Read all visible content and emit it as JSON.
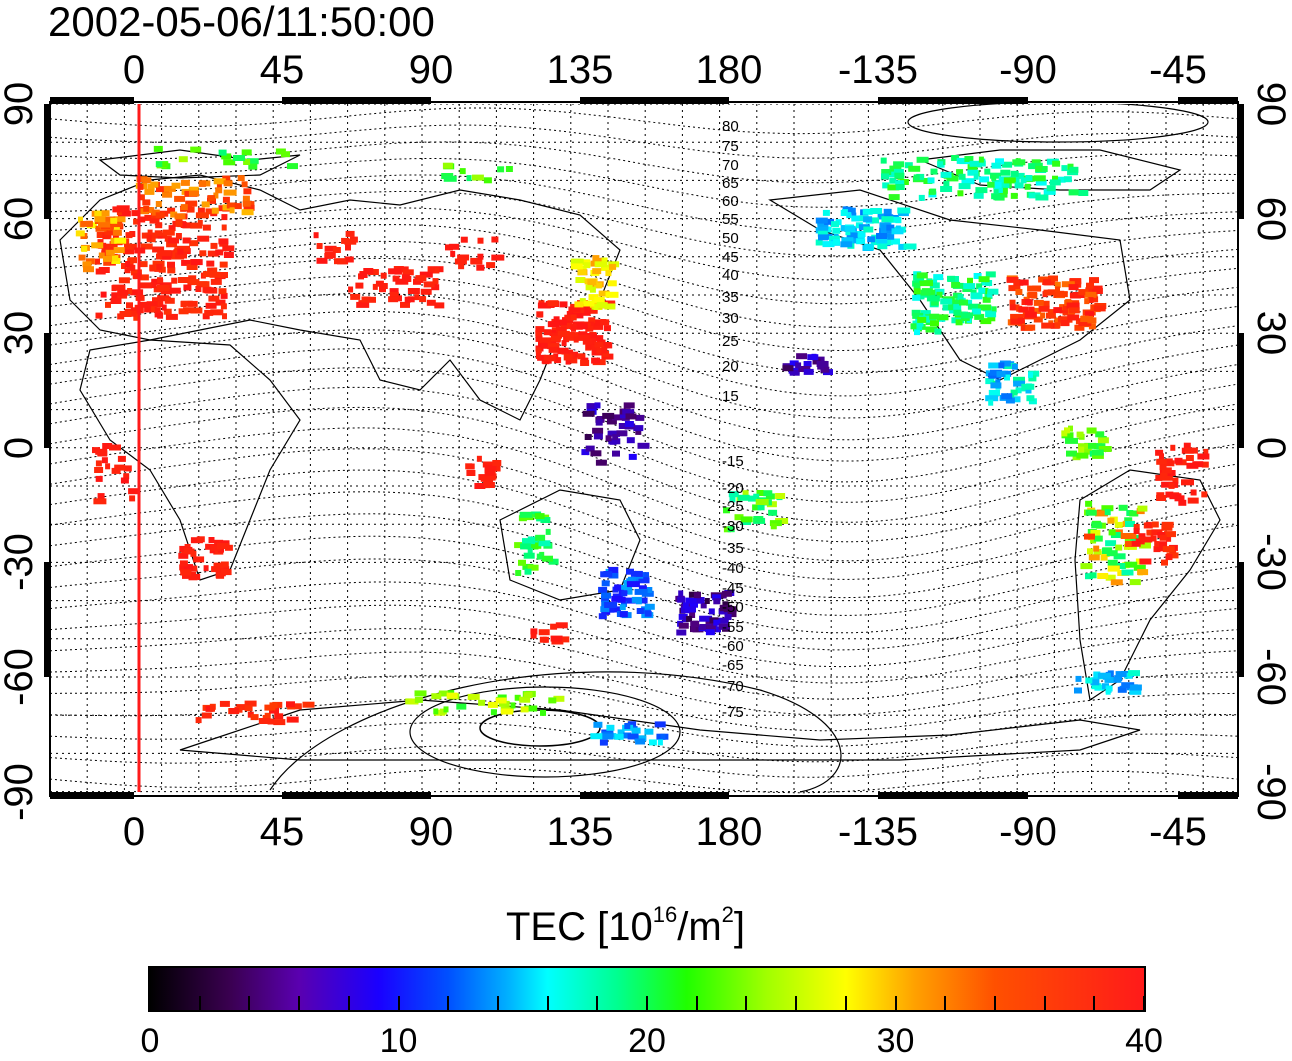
{
  "timestamp": "2002-05-06/11:50:00",
  "map": {
    "lon_ticks": [
      "0",
      "45",
      "90",
      "135",
      "180",
      "-135",
      "-90",
      "-45"
    ],
    "lat_ticks": [
      "90",
      "60",
      "30",
      "0",
      "-30",
      "-60",
      "-90"
    ],
    "contour_labels": [
      "80",
      "75",
      "70",
      "65",
      "60",
      "55",
      "50",
      "45",
      "40",
      "35",
      "30",
      "25",
      "20",
      "15",
      "-15",
      "-20",
      "-25",
      "-30",
      "-35",
      "-40",
      "-45",
      "-50",
      "-55",
      "-60",
      "-65",
      "-70",
      "-75"
    ],
    "colors": {
      "grid": "#000000",
      "coast": "#000000",
      "terminator": "#ff1a1a"
    }
  },
  "colorbar": {
    "title_prefix": "TEC  [10",
    "title_exp1": "16",
    "title_mid": "/m",
    "title_exp2": "2",
    "title_suffix": "]",
    "ticks": [
      "0",
      "10",
      "20",
      "30",
      "40"
    ],
    "min": 0,
    "max": 40
  }
}
